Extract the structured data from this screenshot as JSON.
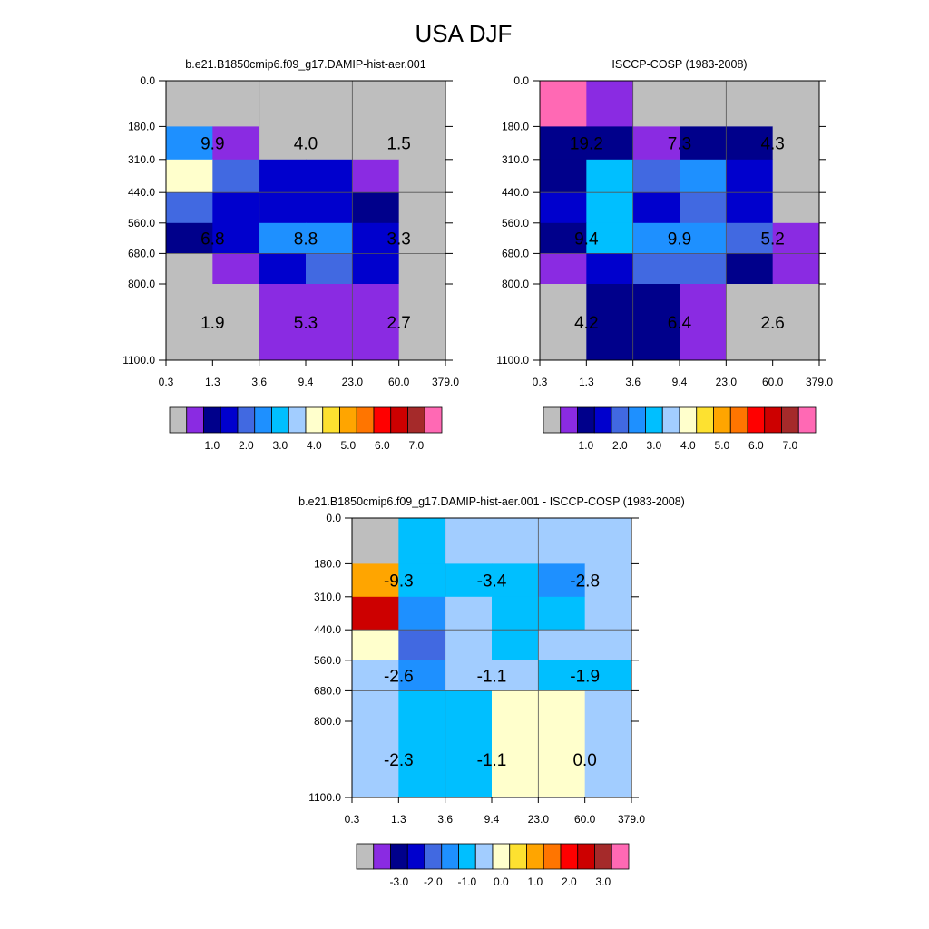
{
  "figure_title": "USA DJF",
  "chart_data": [
    {
      "type": "heatmap",
      "title": "b.e21.B1850cmip6.f09_g17.DAMIP-hist-aer.001",
      "x_ticks": [
        "0.3",
        "1.3",
        "3.6",
        "9.4",
        "23.0",
        "60.0",
        "379.0"
      ],
      "y_ticks": [
        "0.0",
        "180.0",
        "310.0",
        "440.0",
        "560.0",
        "680.0",
        "800.0",
        "1100.0"
      ],
      "cells": [
        [
          "#bebebe",
          "#bebebe",
          "#bebebe",
          "#bebebe",
          "#bebebe",
          "#bebebe"
        ],
        [
          "#1e90ff",
          "#8a2be2",
          "#bebebe",
          "#bebebe",
          "#bebebe",
          "#bebebe"
        ],
        [
          "#ffffcc",
          "#4169e1",
          "#0000cd",
          "#0000cd",
          "#8a2be2",
          "#bebebe"
        ],
        [
          "#4169e1",
          "#0000cd",
          "#0000cd",
          "#0000cd",
          "#00008b",
          "#bebebe"
        ],
        [
          "#00008b",
          "#0000cd",
          "#1e90ff",
          "#1e90ff",
          "#0000cd",
          "#bebebe"
        ],
        [
          "#bebebe",
          "#8a2be2",
          "#0000cd",
          "#4169e1",
          "#0000cd",
          "#bebebe"
        ],
        [
          "#bebebe",
          "#bebebe",
          "#8a2be2",
          "#8a2be2",
          "#8a2be2",
          "#bebebe"
        ]
      ],
      "annotations": [
        "9.9",
        "4.0",
        "1.5",
        "6.8",
        "8.8",
        "3.3",
        "1.9",
        "5.3",
        "2.7"
      ],
      "colorbar": {
        "colors": [
          "#bebebe",
          "#8a2be2",
          "#00008b",
          "#0000cd",
          "#4169e1",
          "#1e90ff",
          "#00bfff",
          "#a2cdff",
          "#ffffcc",
          "#fde130",
          "#ffa500",
          "#ff7500",
          "#ff0000",
          "#cd0000",
          "#a52a2a",
          "#ff69b4"
        ],
        "ticks": [
          "1.0",
          "2.0",
          "3.0",
          "4.0",
          "5.0",
          "6.0",
          "7.0"
        ]
      }
    },
    {
      "type": "heatmap",
      "title": "ISCCP-COSP (1983-2008)",
      "x_ticks": [
        "0.3",
        "1.3",
        "3.6",
        "9.4",
        "23.0",
        "60.0",
        "379.0"
      ],
      "y_ticks": [
        "0.0",
        "180.0",
        "310.0",
        "440.0",
        "560.0",
        "680.0",
        "800.0",
        "1100.0"
      ],
      "cells": [
        [
          "#ff69b4",
          "#8a2be2",
          "#bebebe",
          "#bebebe",
          "#bebebe",
          "#bebebe"
        ],
        [
          "#00008b",
          "#00008b",
          "#8a2be2",
          "#00008b",
          "#00008b",
          "#bebebe"
        ],
        [
          "#00008b",
          "#00bfff",
          "#4169e1",
          "#1e90ff",
          "#0000cd",
          "#bebebe"
        ],
        [
          "#0000cd",
          "#00bfff",
          "#0000cd",
          "#4169e1",
          "#0000cd",
          "#bebebe"
        ],
        [
          "#00008b",
          "#00bfff",
          "#1e90ff",
          "#1e90ff",
          "#4169e1",
          "#8a2be2"
        ],
        [
          "#8a2be2",
          "#0000cd",
          "#4169e1",
          "#4169e1",
          "#00008b",
          "#8a2be2"
        ],
        [
          "#bebebe",
          "#00008b",
          "#00008b",
          "#8a2be2",
          "#bebebe",
          "#bebebe"
        ]
      ],
      "annotations": [
        "19.2",
        "7.3",
        "4.3",
        "9.4",
        "9.9",
        "5.2",
        "4.2",
        "6.4",
        "2.6"
      ],
      "colorbar": {
        "colors": [
          "#bebebe",
          "#8a2be2",
          "#00008b",
          "#0000cd",
          "#4169e1",
          "#1e90ff",
          "#00bfff",
          "#a2cdff",
          "#ffffcc",
          "#fde130",
          "#ffa500",
          "#ff7500",
          "#ff0000",
          "#cd0000",
          "#a52a2a",
          "#ff69b4"
        ],
        "ticks": [
          "1.0",
          "2.0",
          "3.0",
          "4.0",
          "5.0",
          "6.0",
          "7.0"
        ]
      }
    },
    {
      "type": "heatmap",
      "title": "b.e21.B1850cmip6.f09_g17.DAMIP-hist-aer.001 - ISCCP-COSP (1983-2008)",
      "x_ticks": [
        "0.3",
        "1.3",
        "3.6",
        "9.4",
        "23.0",
        "60.0",
        "379.0"
      ],
      "y_ticks": [
        "0.0",
        "180.0",
        "310.0",
        "440.0",
        "560.0",
        "680.0",
        "800.0",
        "1100.0"
      ],
      "cells": [
        [
          "#bebebe",
          "#00bfff",
          "#a2cdff",
          "#a2cdff",
          "#a2cdff",
          "#a2cdff"
        ],
        [
          "#ffa500",
          "#00bfff",
          "#00bfff",
          "#00bfff",
          "#1e90ff",
          "#a2cdff"
        ],
        [
          "#cd0000",
          "#1e90ff",
          "#a2cdff",
          "#00bfff",
          "#00bfff",
          "#a2cdff"
        ],
        [
          "#ffffcc",
          "#4169e1",
          "#a2cdff",
          "#00bfff",
          "#a2cdff",
          "#a2cdff"
        ],
        [
          "#a2cdff",
          "#1e90ff",
          "#a2cdff",
          "#a2cdff",
          "#00bfff",
          "#00bfff"
        ],
        [
          "#a2cdff",
          "#00bfff",
          "#00bfff",
          "#ffffcc",
          "#ffffcc",
          "#a2cdff"
        ],
        [
          "#a2cdff",
          "#00bfff",
          "#00bfff",
          "#ffffcc",
          "#ffffcc",
          "#a2cdff"
        ]
      ],
      "annotations": [
        "-9.3",
        "-3.4",
        "-2.8",
        "-2.6",
        "-1.1",
        "-1.9",
        "-2.3",
        "-1.1",
        "0.0"
      ],
      "colorbar": {
        "colors": [
          "#bebebe",
          "#8a2be2",
          "#00008b",
          "#0000cd",
          "#4169e1",
          "#1e90ff",
          "#00bfff",
          "#a2cdff",
          "#ffffcc",
          "#fde130",
          "#ffa500",
          "#ff7500",
          "#ff0000",
          "#cd0000",
          "#a52a2a",
          "#ff69b4"
        ],
        "ticks": [
          "-3.0",
          "-2.0",
          "-1.0",
          "0.0",
          "1.0",
          "2.0",
          "3.0"
        ]
      }
    }
  ]
}
